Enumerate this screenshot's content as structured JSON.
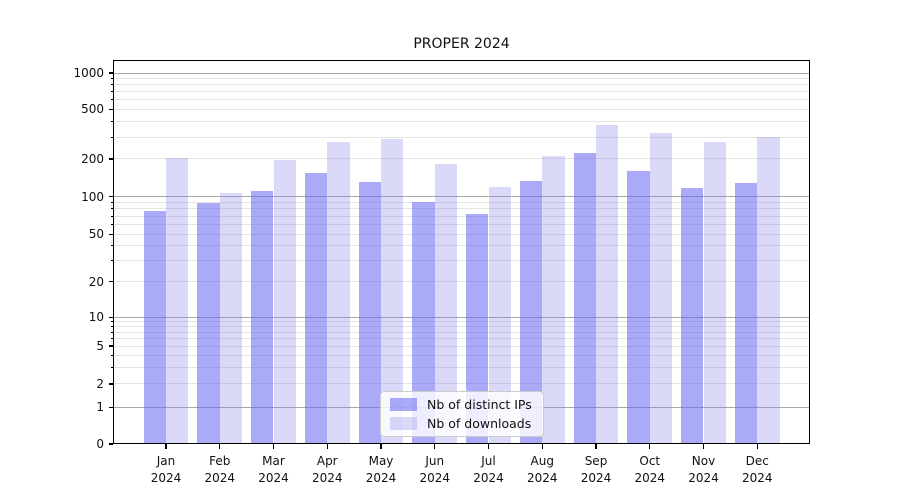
{
  "chart_data": {
    "type": "bar",
    "title": "PROPER 2024",
    "categories": [
      "Jan",
      "Feb",
      "Mar",
      "Apr",
      "May",
      "Jun",
      "Jul",
      "Aug",
      "Sep",
      "Oct",
      "Nov",
      "Dec"
    ],
    "year_label": "2024",
    "series": [
      {
        "name": "Nb of distinct IPs",
        "color": "rgba(100,100,242,0.55)",
        "solid_color": "#aaaaf8",
        "values": [
          77,
          89,
          112,
          155,
          132,
          91,
          73,
          134,
          222,
          161,
          118,
          128
        ]
      },
      {
        "name": "Nb of downloads",
        "color": "rgba(132,132,232,0.3)",
        "solid_color": "#dadaf8",
        "values": [
          202,
          107,
          196,
          275,
          288,
          181,
          120,
          210,
          375,
          322,
          274,
          300
        ]
      }
    ],
    "xlabel": "",
    "ylabel": "",
    "yscale": "symlog",
    "y_ticks": [
      0,
      1,
      2,
      5,
      10,
      20,
      50,
      100,
      200,
      500,
      1000
    ],
    "ylim": [
      0,
      1300
    ],
    "grid": true,
    "major_grid_color": "#a8a8a8",
    "minor_grid_color": "#e4e4e4",
    "legend_position": "lower center",
    "legend_entries": [
      "Nb of distinct IPs",
      "Nb of downloads"
    ]
  }
}
